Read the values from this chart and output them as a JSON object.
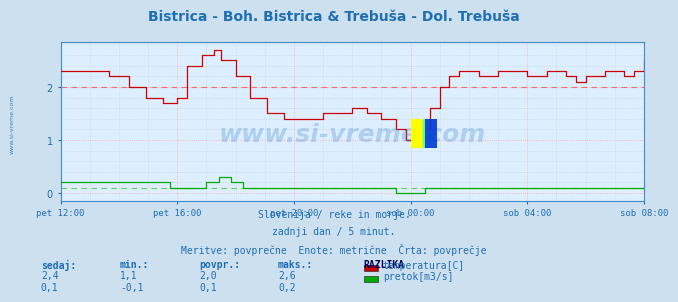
{
  "title": "Bistrica - Boh. Bistrica & Trebuša - Dol. Trebuša",
  "title_color": "#1e6eb4",
  "bg_color": "#cce0f0",
  "plot_bg_color": "#ddeeff",
  "grid_color_major": "#ffaaaa",
  "grid_color_minor": "#bbccdd",
  "tick_color": "#1e6eb4",
  "tick_labels": [
    "pet 12:00",
    "pet 16:00",
    "pet 20:00",
    "sob 00:00",
    "sob 04:00",
    "sob 08:00"
  ],
  "tick_positions": [
    0,
    48,
    96,
    144,
    192,
    240
  ],
  "n_points": 241,
  "ylim": [
    -0.15,
    2.85
  ],
  "yticks": [
    0,
    1,
    2
  ],
  "temp_color": "#cc0000",
  "flow_color": "#00aa00",
  "dashed_color_temp": "#ff6666",
  "dashed_color_flow": "#66cc66",
  "dashed_avg_temp": 2.0,
  "dashed_avg_flow": 0.1,
  "watermark": "www.si-vreme.com",
  "watermark_color": "#4488cc",
  "watermark_alpha": 0.3,
  "footer_line1": "Slovenija / reke in morje.",
  "footer_line2": "zadnji dan / 5 minut.",
  "footer_line3": "Meritve: povprečne  Enote: metrične  Črta: povprečje",
  "footer_color": "#1e6eb4",
  "label_color": "#1e6eb4",
  "sidebar_text": "www.si-vreme.com",
  "table_headers": [
    "sedaj:",
    "min.:",
    "povpr.:",
    "maks.:"
  ],
  "table_row1": [
    "2,4",
    "1,1",
    "2,0",
    "2,6"
  ],
  "table_row2": [
    "0,1",
    "-0,1",
    "0,1",
    "0,2"
  ],
  "legend_header": "RAZLIKA",
  "legend_labels": [
    "temperatura[C]",
    "pretok[m3/s]"
  ],
  "legend_colors": [
    "#cc0000",
    "#00aa00"
  ],
  "spine_color": "#4488cc",
  "axis_arrow_color": "#cc0000"
}
